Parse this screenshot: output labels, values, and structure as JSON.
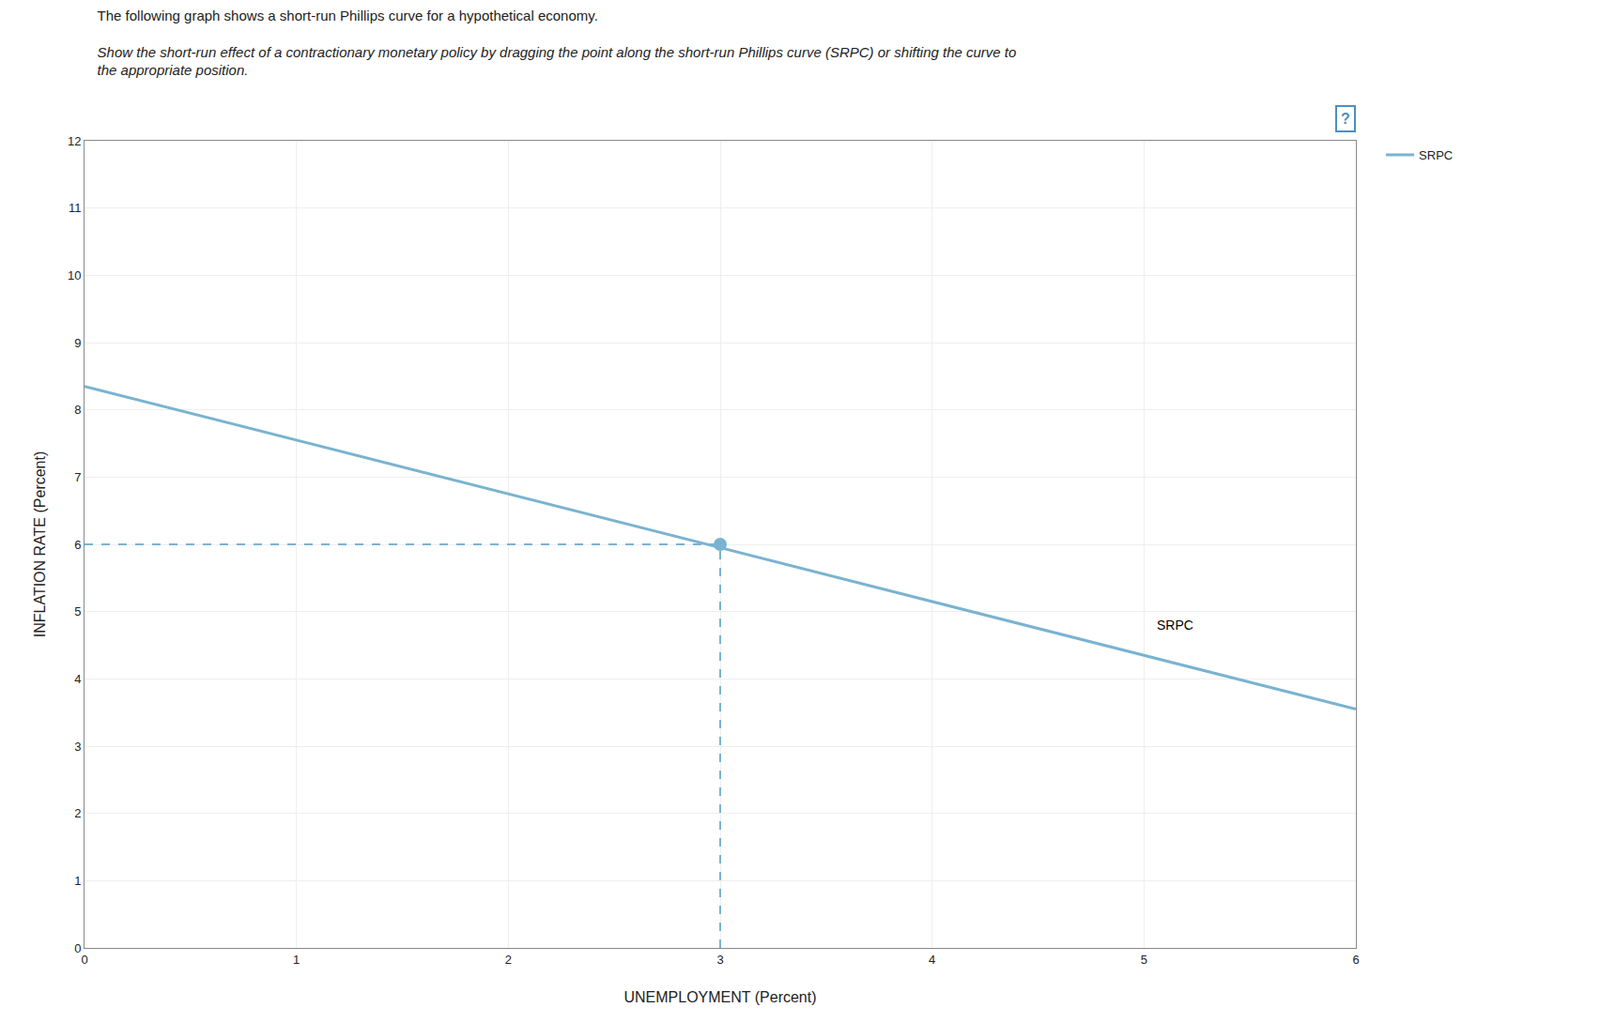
{
  "chart_data": {
    "type": "line",
    "title": "The following graph shows a short-run Phillips curve for a hypothetical economy.",
    "subtitle": [
      "Show the short-run effect of a contractionary monetary policy by dragging the point along the short-run Phillips curve (SRPC) or shifting the curve to",
      "the appropriate position."
    ],
    "xlabel": "UNEMPLOYMENT (Percent)",
    "ylabel": "INFLATION RATE (Percent)",
    "xlim": [
      0,
      6
    ],
    "ylim": [
      0,
      12
    ],
    "xticks": [
      0,
      1,
      2,
      3,
      4,
      5,
      6
    ],
    "yticks": [
      0,
      1,
      2,
      3,
      4,
      5,
      6,
      7,
      8,
      9,
      10,
      11,
      12
    ],
    "series": [
      {
        "name": "SRPC",
        "type": "line",
        "color": "#7ab3d0",
        "x": [
          0,
          6
        ],
        "values": [
          8.35,
          3.55
        ]
      },
      {
        "type": "scatter",
        "color": "#7ab3d0",
        "marker": "circle",
        "line_style": "dashed",
        "x": [
          3
        ],
        "values": [
          6
        ]
      }
    ],
    "annotations": [
      {
        "text": "SRPC",
        "x": 5.05,
        "y": 4.8
      },
      {
        "text": "?",
        "color": "#4d8fc0"
      }
    ],
    "grid": true,
    "legend": "right"
  }
}
